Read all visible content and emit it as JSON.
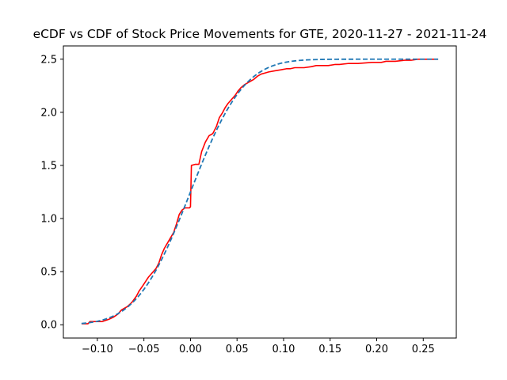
{
  "chart_data": {
    "type": "line",
    "title": "eCDF vs CDF of Stock Price Movements for GTE, 2020-11-27 - 2021-11-24",
    "xlabel": "",
    "ylabel": "",
    "xlim": [
      -0.1365,
      0.2855
    ],
    "ylim": [
      -0.125,
      2.625
    ],
    "xticks": [
      -0.1,
      -0.05,
      0.0,
      0.05,
      0.1,
      0.15,
      0.2,
      0.25
    ],
    "xtick_labels": [
      "−0.10",
      "−0.05",
      "0.00",
      "0.05",
      "0.10",
      "0.15",
      "0.20",
      "0.25"
    ],
    "yticks": [
      0.0,
      0.5,
      1.0,
      1.5,
      2.0,
      2.5
    ],
    "ytick_labels": [
      "0.0",
      "0.5",
      "1.0",
      "1.5",
      "2.0",
      "2.5"
    ],
    "grid": false,
    "legend": false,
    "series": [
      {
        "name": "",
        "style": "solid",
        "color": "#ff0000",
        "x": [
          -0.117,
          -0.11,
          -0.108,
          -0.1,
          -0.095,
          -0.088,
          -0.083,
          -0.078,
          -0.074,
          -0.072,
          -0.068,
          -0.063,
          -0.058,
          -0.055,
          -0.051,
          -0.048,
          -0.045,
          -0.041,
          -0.037,
          -0.034,
          -0.031,
          -0.028,
          -0.026,
          -0.022,
          -0.018,
          -0.015,
          -0.012,
          -0.009,
          -0.006,
          -0.004,
          -0.002,
          -0.001,
          0.0,
          0.001,
          0.005,
          0.009,
          0.012,
          0.016,
          0.02,
          0.024,
          0.028,
          0.031,
          0.034,
          0.037,
          0.04,
          0.044,
          0.048,
          0.051,
          0.054,
          0.058,
          0.062,
          0.064,
          0.068,
          0.072,
          0.076,
          0.08,
          0.084,
          0.09,
          0.097,
          0.103,
          0.107,
          0.112,
          0.118,
          0.122,
          0.13,
          0.135,
          0.14,
          0.148,
          0.155,
          0.16,
          0.17,
          0.18,
          0.195,
          0.205,
          0.21,
          0.22,
          0.23,
          0.237,
          0.245,
          0.255,
          0.266
        ],
        "y": [
          0.01,
          0.01,
          0.03,
          0.03,
          0.03,
          0.05,
          0.07,
          0.1,
          0.14,
          0.15,
          0.17,
          0.21,
          0.27,
          0.32,
          0.37,
          0.41,
          0.45,
          0.49,
          0.53,
          0.58,
          0.66,
          0.72,
          0.75,
          0.81,
          0.87,
          0.95,
          1.04,
          1.08,
          1.1,
          1.1,
          1.1,
          1.1,
          1.11,
          1.5,
          1.51,
          1.51,
          1.63,
          1.72,
          1.78,
          1.8,
          1.87,
          1.95,
          1.99,
          2.04,
          2.08,
          2.12,
          2.16,
          2.2,
          2.23,
          2.26,
          2.28,
          2.29,
          2.31,
          2.34,
          2.36,
          2.37,
          2.38,
          2.39,
          2.4,
          2.41,
          2.41,
          2.42,
          2.42,
          2.42,
          2.43,
          2.44,
          2.44,
          2.44,
          2.45,
          2.45,
          2.46,
          2.46,
          2.47,
          2.47,
          2.48,
          2.48,
          2.49,
          2.49,
          2.5,
          2.5,
          2.5
        ]
      },
      {
        "name": "",
        "style": "dashed",
        "color": "#1f77b4",
        "cdf": {
          "mean": 0.0,
          "std": 0.045,
          "scale": 2.5
        },
        "x_range": [
          -0.117,
          0.266
        ]
      }
    ]
  }
}
